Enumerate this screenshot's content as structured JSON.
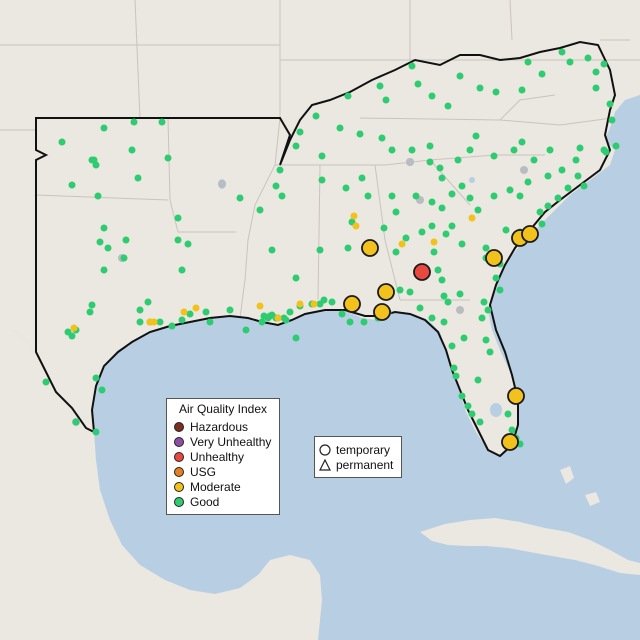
{
  "map": {
    "land_color": "#ebe7e1",
    "water_color": "#b8cfe3",
    "boundary_color": "#c9c4bd",
    "region_outline_color": "#111111"
  },
  "aqi_legend": {
    "title": "Air Quality Index",
    "items": [
      {
        "label": "Hazardous",
        "color": "#7e2b22"
      },
      {
        "label": "Very Unhealthy",
        "color": "#8e4fa3"
      },
      {
        "label": "Unhealthy",
        "color": "#e8483d"
      },
      {
        "label": "USG",
        "color": "#e67e22"
      },
      {
        "label": "Moderate",
        "color": "#f2c11b"
      },
      {
        "label": "Good",
        "color": "#2ecc71"
      }
    ]
  },
  "monitor_legend": {
    "items": [
      {
        "label": "temporary",
        "shape": "circle-icon"
      },
      {
        "label": "permanent",
        "shape": "triangle-icon"
      }
    ]
  }
}
